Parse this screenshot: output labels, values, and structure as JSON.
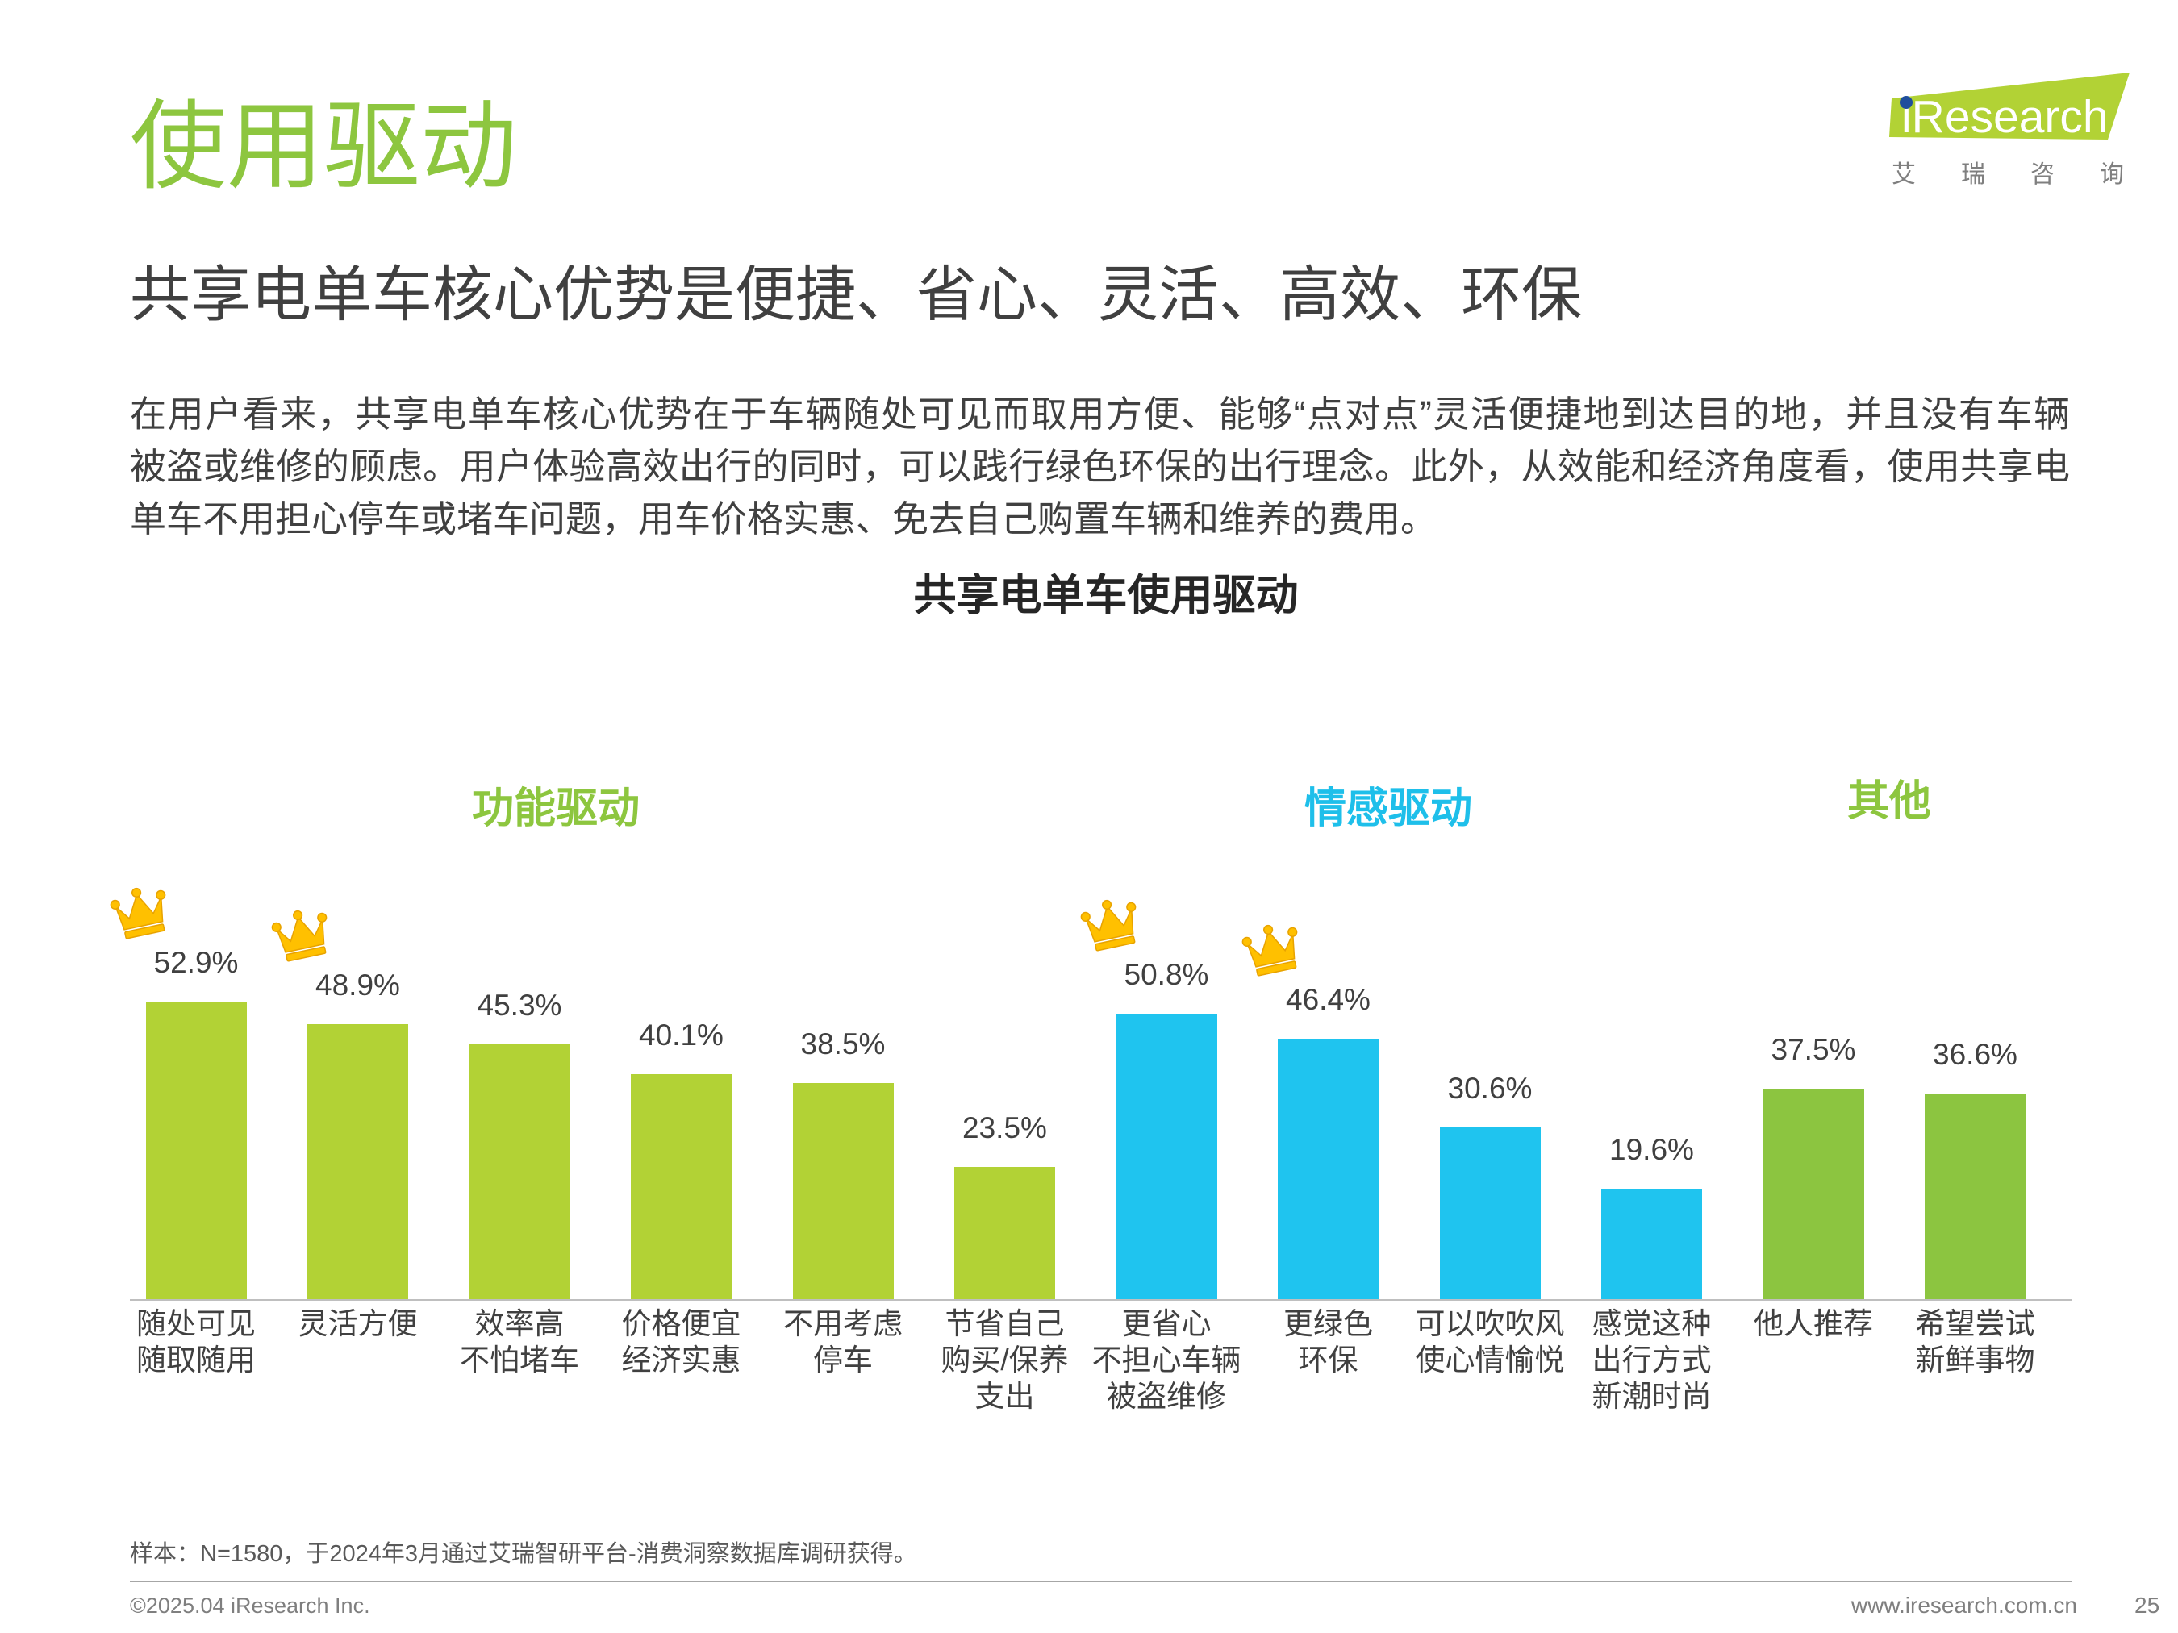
{
  "header": {
    "title": "使用驱动",
    "subtitle": "共享电单车核心优势是便捷、省心、灵活、高效、环保"
  },
  "logo": {
    "brand": "iResearch",
    "tagline": "艾瑞咨询",
    "badge_color": "#b2d235",
    "dot_color": "#1f4e9c"
  },
  "intro": {
    "lines": [
      "在用户看来，共享电单车核心优势在于车辆随处可见而取用方便、能够“点对点”灵活便捷地到达目的地，并且没有车辆",
      "被盗或维修的顾虑。用户体验高效出行的同时，可以践行绿色环保的出行理念。此外，从效能和经济角度看，使用共享电",
      "单车不用担心停车或堵车问题，用车价格实惠、免去自己购置车辆和维养的费用。"
    ]
  },
  "chart_data": {
    "type": "bar",
    "title": "共享电单车使用驱动",
    "unit": "%",
    "grid": false,
    "categories": [
      "随处可见\n随取随用",
      "灵活方便",
      "效率高\n不怕堵车",
      "价格便宜\n经济实惠",
      "不用考虑\n停车",
      "节省自己\n购买/保养\n支出",
      "更省心\n不担心车辆\n被盗维修",
      "更绿色\n环保",
      "可以吹吹风\n使心情愉悦",
      "感觉这种\n出行方式\n新潮时尚",
      "他人推荐",
      "希望尝试\n新鲜事物"
    ],
    "values": [
      52.9,
      48.9,
      45.3,
      40.1,
      38.5,
      23.5,
      50.8,
      46.4,
      30.6,
      19.6,
      37.5,
      36.6
    ],
    "crowns": [
      true,
      true,
      false,
      false,
      false,
      false,
      true,
      true,
      false,
      false,
      false,
      false
    ],
    "crown_color": "#ffc000",
    "groups": [
      {
        "name": "功能驱动",
        "start": 0,
        "count": 6,
        "bar_color": "#b2d235",
        "label_color": "#8dc63f"
      },
      {
        "name": "情感驱动",
        "start": 6,
        "count": 4,
        "bar_color": "#1fc4ef",
        "label_color": "#1ebfea"
      },
      {
        "name": "其他",
        "start": 10,
        "count": 2,
        "bar_color": "#8cc540",
        "label_color": "#8dc63f"
      }
    ]
  },
  "footer": {
    "note": "样本：N=1580，于2024年3月通过艾瑞智研平台-消费洞察数据库调研获得。",
    "copyright": "©2025.04 iResearch Inc.",
    "website": "www.iresearch.com.cn",
    "page_number": "25"
  }
}
